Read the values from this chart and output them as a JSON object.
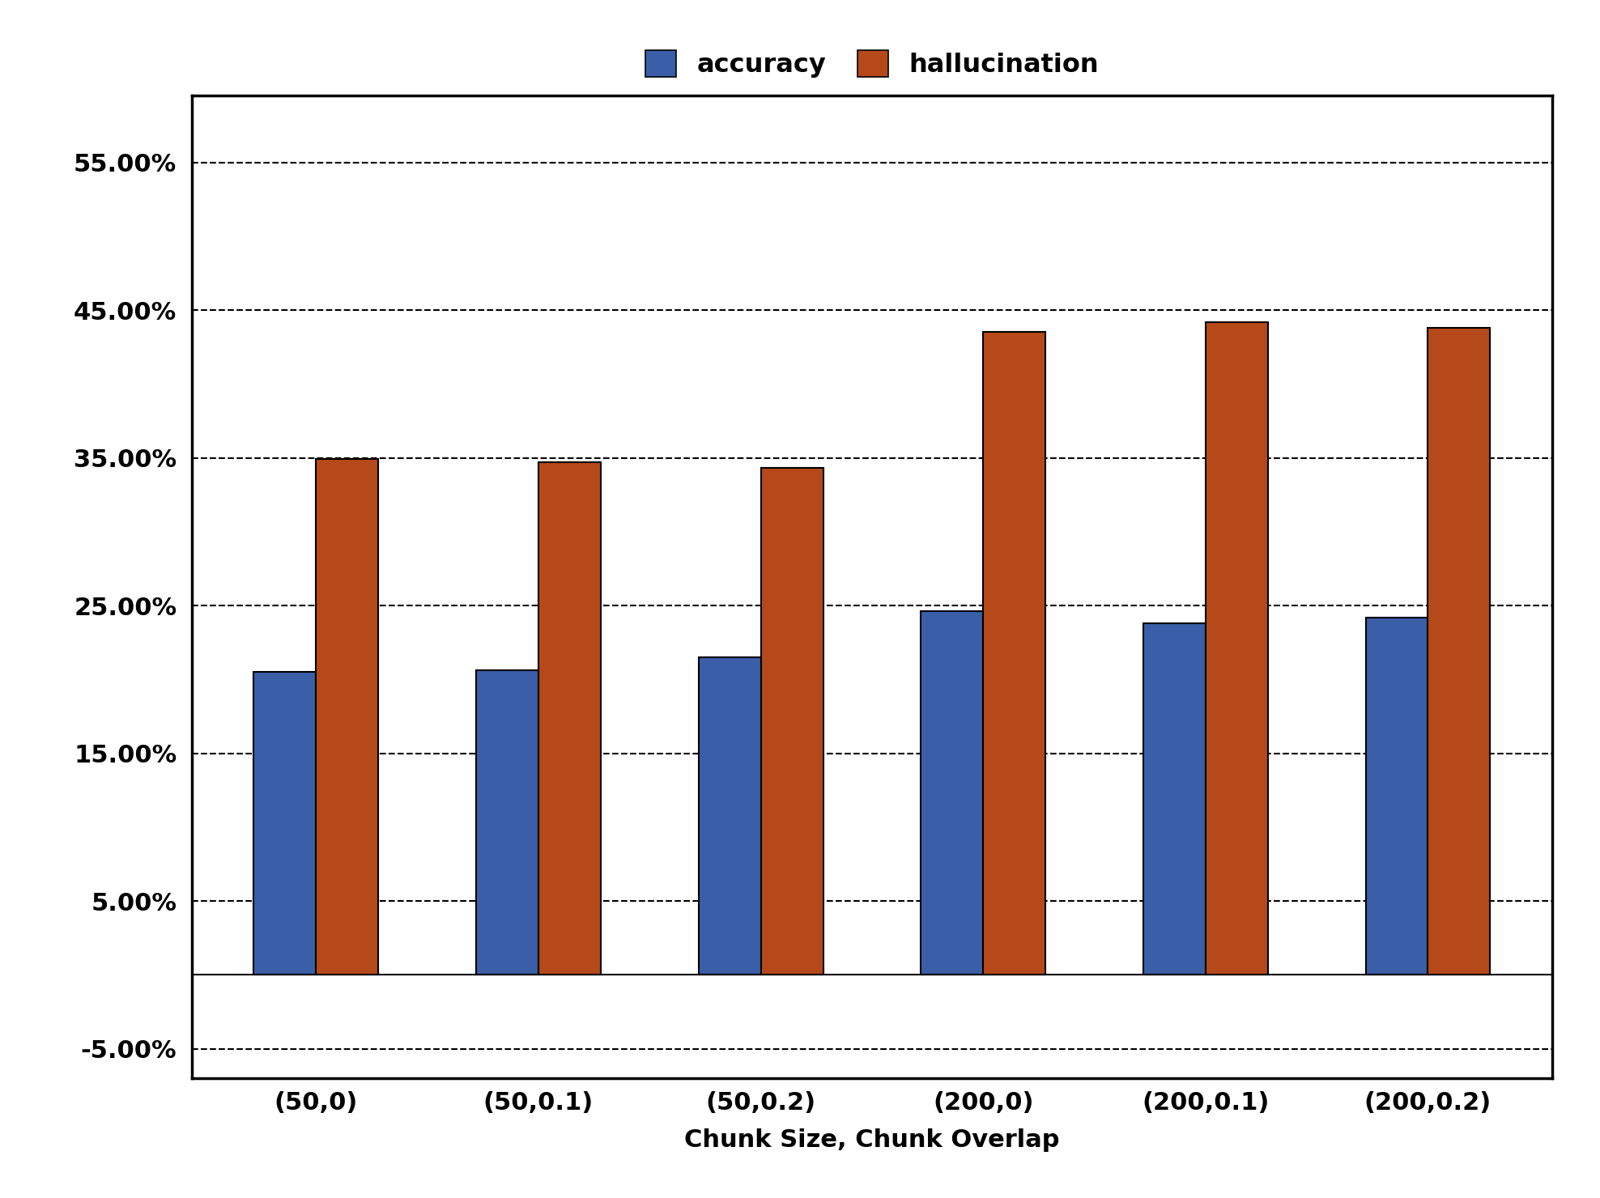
{
  "categories": [
    "(50,0)",
    "(50,0.1)",
    "(50,0.2)",
    "(200,0)",
    "(200,0.1)",
    "(200,0.2)"
  ],
  "accuracy": [
    0.205,
    0.206,
    0.215,
    0.246,
    0.238,
    0.242
  ],
  "hallucination": [
    0.349,
    0.347,
    0.343,
    0.435,
    0.442,
    0.438
  ],
  "accuracy_color": "#3A5FA8",
  "hallucination_color": "#B5491A",
  "bar_edge_color": "#000000",
  "legend_labels": [
    "accuracy",
    "hallucination"
  ],
  "xlabel": "Chunk Size, Chunk Overlap",
  "yticks": [
    -0.05,
    0.05,
    0.15,
    0.25,
    0.35,
    0.45,
    0.55
  ],
  "ytick_labels": [
    "-5.00%",
    "5.00%",
    "15.00%",
    "25.00%",
    "35.00%",
    "45.00%",
    "55.00%"
  ],
  "ylim": [
    -0.07,
    0.595
  ],
  "grid_color": "#000000",
  "background_color": "#ffffff",
  "bar_width": 0.28,
  "axis_fontsize": 22,
  "tick_fontsize": 22,
  "legend_fontsize": 23
}
